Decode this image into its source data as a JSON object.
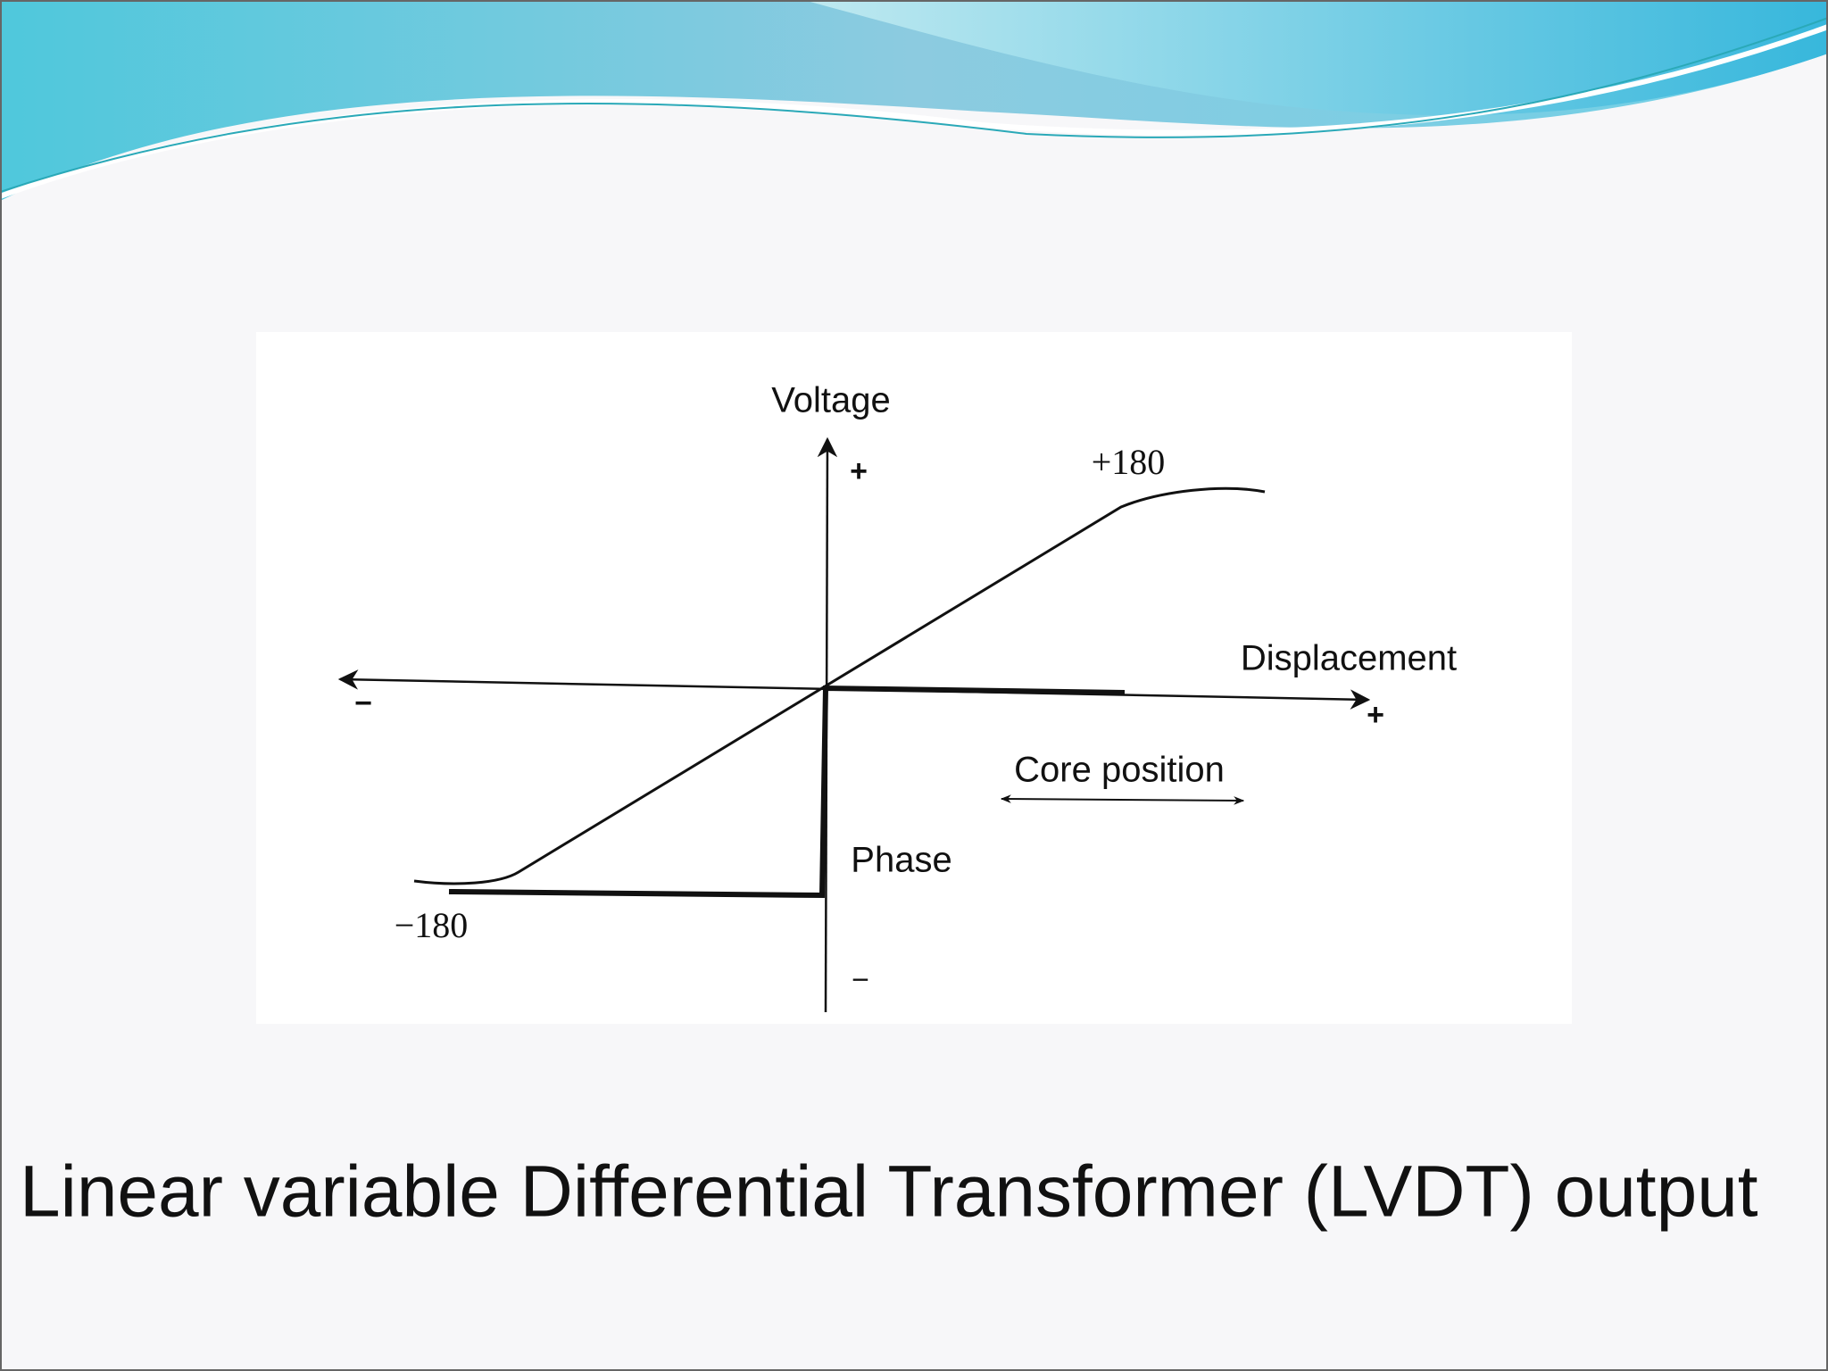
{
  "slide": {
    "caption": "Linear variable Differential Transformer (LVDT) output",
    "diagram": {
      "y_axis_label": "Voltage",
      "y_axis_positive": "+",
      "y_axis_negative": "−",
      "x_axis_label": "Displacement",
      "x_axis_positive": "+",
      "x_axis_negative": "−",
      "upper_phase_label": "+180",
      "lower_phase_label": "−180",
      "phase_label": "Phase",
      "core_position_label": "Core position"
    }
  }
}
